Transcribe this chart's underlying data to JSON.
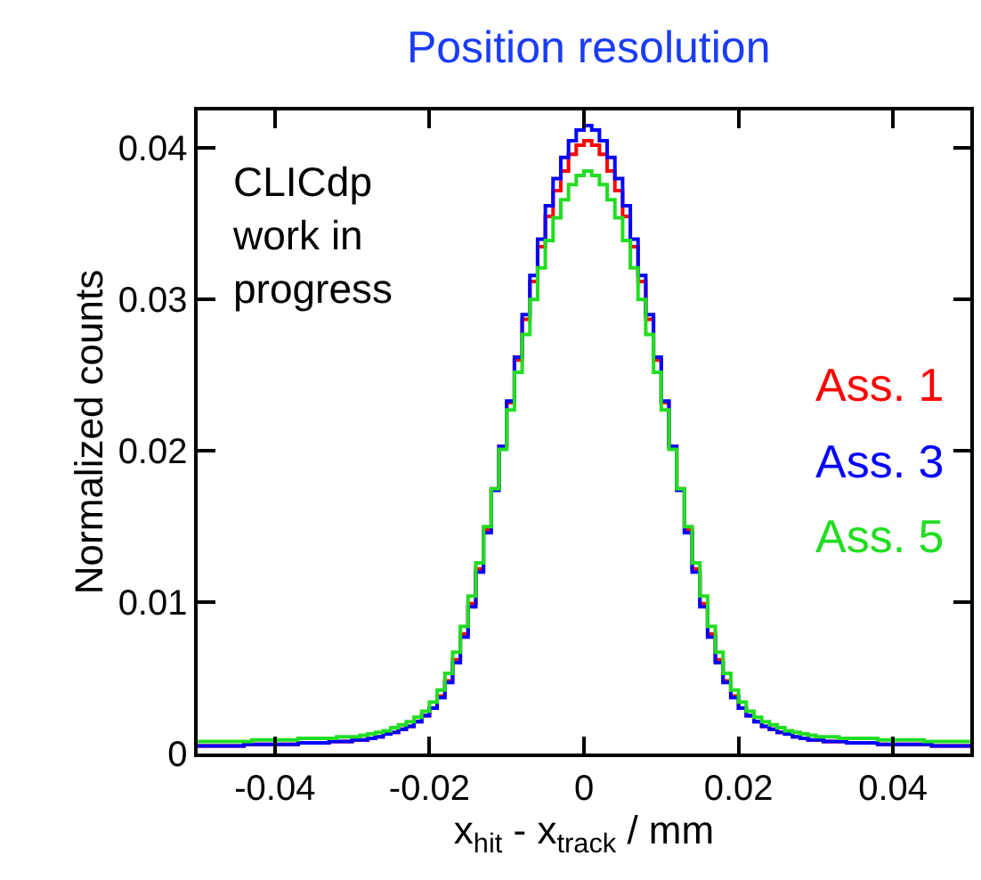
{
  "chart_data": {
    "type": "histogram",
    "title": "Position resolution",
    "xlabel": "x$_{hit}$ - x$_{track}$ / mm",
    "ylabel": "Normalized counts",
    "annotations": [
      "CLICdp\nwork in\nprogress"
    ],
    "bins": [
      -0.05,
      -0.049,
      -0.048,
      -0.047,
      -0.046,
      -0.045,
      -0.044,
      -0.043,
      -0.042,
      -0.041,
      -0.04,
      -0.039,
      -0.038,
      -0.037,
      -0.036,
      -0.035,
      -0.034,
      -0.033,
      -0.032,
      -0.031,
      -0.03,
      -0.029,
      -0.028,
      -0.027,
      -0.026,
      -0.025,
      -0.024,
      -0.023,
      -0.022,
      -0.021,
      -0.02,
      -0.019,
      -0.018,
      -0.017,
      -0.016,
      -0.015,
      -0.014,
      -0.013,
      -0.012,
      -0.011,
      -0.01,
      -0.009,
      -0.008,
      -0.007,
      -0.006,
      -0.005,
      -0.004,
      -0.003,
      -0.002,
      -0.001,
      0,
      0.001,
      0.002,
      0.003,
      0.004,
      0.005,
      0.006,
      0.007,
      0.008,
      0.009,
      0.01,
      0.011,
      0.012,
      0.013,
      0.014,
      0.015,
      0.016,
      0.017,
      0.018,
      0.019,
      0.02,
      0.021,
      0.022,
      0.023,
      0.024,
      0.025,
      0.026,
      0.027,
      0.028,
      0.029,
      0.03,
      0.031,
      0.032,
      0.033,
      0.034,
      0.035,
      0.036,
      0.037,
      0.038,
      0.039,
      0.04,
      0.041,
      0.042,
      0.043,
      0.044,
      0.045,
      0.046,
      0.047,
      0.048,
      0.049,
      0.05
    ],
    "series": [
      {
        "name": "Ass. 1",
        "color": "#ff0000",
        "values": [
          0.0005,
          0.0005,
          0.0005,
          0.0005,
          0.0005,
          0.0005,
          0.0006,
          0.0006,
          0.0006,
          0.0006,
          0.0006,
          0.0006,
          0.0006,
          0.0007,
          0.0007,
          0.0007,
          0.0007,
          0.0008,
          0.0008,
          0.0008,
          0.0009,
          0.0009,
          0.001,
          0.0011,
          0.0013,
          0.0014,
          0.0016,
          0.0018,
          0.0021,
          0.0025,
          0.003,
          0.0038,
          0.0048,
          0.0062,
          0.0079,
          0.0099,
          0.0122,
          0.0148,
          0.0175,
          0.0203,
          0.0232,
          0.026,
          0.0287,
          0.0312,
          0.0335,
          0.0355,
          0.0372,
          0.0385,
          0.0396,
          0.0402,
          0.0405,
          0.0402,
          0.0396,
          0.0385,
          0.0372,
          0.0355,
          0.0335,
          0.0312,
          0.0287,
          0.026,
          0.0232,
          0.0203,
          0.0175,
          0.0148,
          0.0122,
          0.0099,
          0.0079,
          0.0062,
          0.0048,
          0.0038,
          0.003,
          0.0025,
          0.0021,
          0.0018,
          0.0016,
          0.0014,
          0.0013,
          0.0011,
          0.001,
          0.0009,
          0.0009,
          0.0008,
          0.0008,
          0.0008,
          0.0007,
          0.0007,
          0.0007,
          0.0007,
          0.0006,
          0.0006,
          0.0006,
          0.0006,
          0.0006,
          0.0006,
          0.0006,
          0.0005,
          0.0005,
          0.0005,
          0.0005,
          0.0005
        ]
      },
      {
        "name": "Ass. 3",
        "color": "#0000ff",
        "values": [
          0.0005,
          0.0005,
          0.0005,
          0.0005,
          0.0005,
          0.0005,
          0.0006,
          0.0006,
          0.0006,
          0.0006,
          0.0006,
          0.0006,
          0.0006,
          0.0007,
          0.0007,
          0.0007,
          0.0007,
          0.0008,
          0.0008,
          0.0008,
          0.0009,
          0.0009,
          0.001,
          0.0011,
          0.0013,
          0.0014,
          0.0016,
          0.0018,
          0.0021,
          0.0025,
          0.003,
          0.0037,
          0.0047,
          0.006,
          0.0077,
          0.0097,
          0.012,
          0.0146,
          0.0174,
          0.0203,
          0.0233,
          0.0262,
          0.029,
          0.0316,
          0.034,
          0.0362,
          0.038,
          0.0394,
          0.0405,
          0.0412,
          0.0415,
          0.0412,
          0.0405,
          0.0394,
          0.038,
          0.0362,
          0.034,
          0.0316,
          0.029,
          0.0262,
          0.0233,
          0.0203,
          0.0174,
          0.0146,
          0.012,
          0.0097,
          0.0077,
          0.006,
          0.0047,
          0.0037,
          0.003,
          0.0025,
          0.0021,
          0.0018,
          0.0016,
          0.0014,
          0.0013,
          0.0011,
          0.001,
          0.0009,
          0.0009,
          0.0008,
          0.0008,
          0.0008,
          0.0007,
          0.0007,
          0.0007,
          0.0007,
          0.0006,
          0.0006,
          0.0006,
          0.0006,
          0.0006,
          0.0006,
          0.0006,
          0.0005,
          0.0005,
          0.0005,
          0.0005,
          0.0005
        ]
      },
      {
        "name": "Ass. 5",
        "color": "#22dd22",
        "values": [
          0.0008,
          0.0008,
          0.0008,
          0.0008,
          0.0008,
          0.0008,
          0.0008,
          0.0009,
          0.0009,
          0.0009,
          0.0009,
          0.0009,
          0.0009,
          0.001,
          0.001,
          0.001,
          0.001,
          0.001,
          0.0011,
          0.0011,
          0.0011,
          0.0012,
          0.0013,
          0.0014,
          0.0015,
          0.0017,
          0.0019,
          0.0021,
          0.0024,
          0.0028,
          0.0034,
          0.0042,
          0.0053,
          0.0067,
          0.0084,
          0.0104,
          0.0126,
          0.015,
          0.0175,
          0.0201,
          0.0227,
          0.0252,
          0.0277,
          0.03,
          0.0321,
          0.0339,
          0.0354,
          0.0366,
          0.0376,
          0.0382,
          0.0385,
          0.0382,
          0.0376,
          0.0366,
          0.0354,
          0.0339,
          0.0321,
          0.03,
          0.0277,
          0.0252,
          0.0227,
          0.0201,
          0.0175,
          0.015,
          0.0126,
          0.0104,
          0.0084,
          0.0067,
          0.0053,
          0.0042,
          0.0034,
          0.0028,
          0.0024,
          0.0021,
          0.0019,
          0.0017,
          0.0015,
          0.0014,
          0.0013,
          0.0012,
          0.0011,
          0.0011,
          0.0011,
          0.001,
          0.001,
          0.001,
          0.001,
          0.001,
          0.0009,
          0.0009,
          0.0009,
          0.0009,
          0.0009,
          0.0009,
          0.0008,
          0.0008,
          0.0008,
          0.0008,
          0.0008,
          0.0008
        ]
      }
    ],
    "xlim": [
      -0.05,
      0.05
    ],
    "xticks": [
      -0.04,
      -0.02,
      0,
      0.02,
      0.04
    ],
    "ylim": [
      0,
      0.0425
    ],
    "yticks": [
      0,
      0.01,
      0.02,
      0.03,
      0.04
    ],
    "legend": "right"
  }
}
